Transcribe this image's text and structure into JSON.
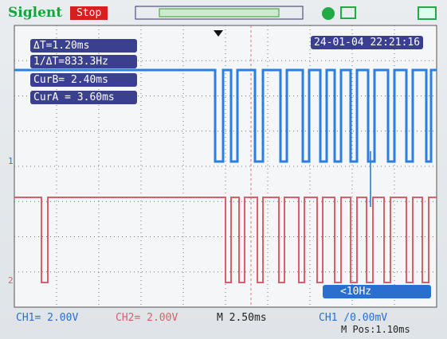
{
  "header": {
    "brand": "Siglent",
    "status": "Stop"
  },
  "measurements": [
    "ΔT=1.20ms",
    "1/ΔT=833.3Hz",
    "CurB= 2.40ms",
    "CurA = 3.60ms"
  ],
  "datetime": "24-01-04 22:21:16",
  "channel_markers": [
    "1",
    "2"
  ],
  "trigger_frequency": "<10Hz",
  "footer": {
    "ch1": "CH1= 2.00V",
    "ch2": "CH2= 2.00V",
    "timebase": "M 2.50ms",
    "trigger": "CH1 /0.00mV",
    "position": "M Pos:1.10ms"
  }
}
